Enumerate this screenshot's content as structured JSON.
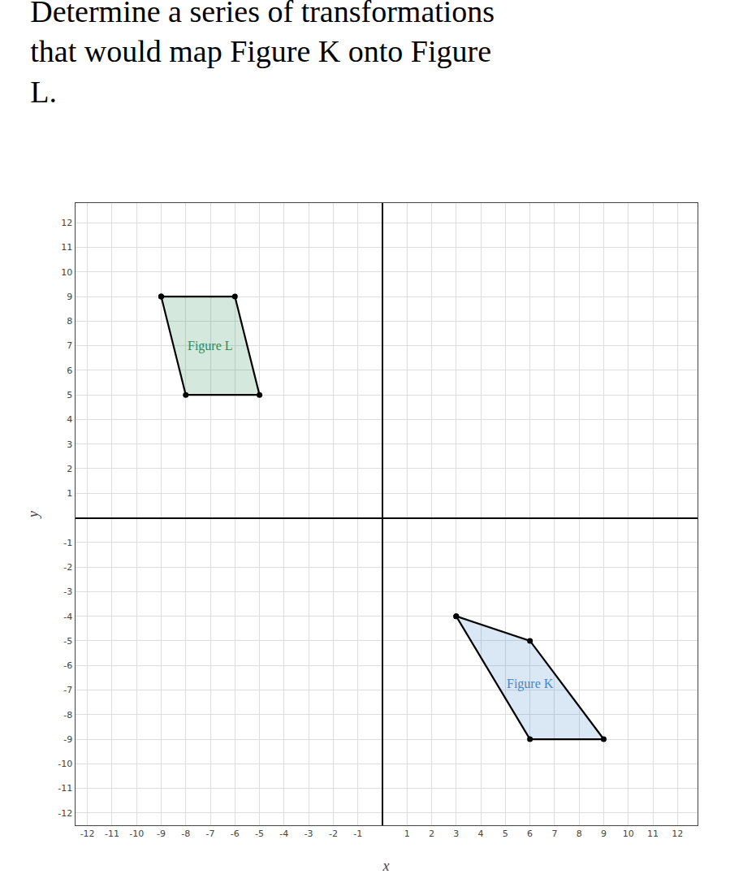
{
  "chart_data": {
    "type": "polygon",
    "title": "Determine a series of transformations\nthat would map Figure K onto Figure\nL.",
    "xlabel": "x",
    "ylabel": "y",
    "series": [
      {
        "name": "Figure L",
        "color": "#2e8b57",
        "x": [
          -9,
          -6,
          -5,
          -8
        ],
        "y": [
          9,
          9,
          5,
          5
        ]
      },
      {
        "name": "Figure K",
        "color": "#4488cc",
        "x": [
          3,
          6,
          9,
          6
        ],
        "y": [
          -4,
          -5,
          -9,
          -9
        ]
      }
    ],
    "xlim": [
      -12.5,
      12.8
    ],
    "ylim": [
      -12.5,
      12.8
    ],
    "xticks": [
      -12,
      -11,
      -10,
      -9,
      -8,
      -7,
      -6,
      -5,
      -4,
      -3,
      -2,
      -1,
      1,
      2,
      3,
      4,
      5,
      6,
      7,
      8,
      9,
      10,
      11,
      12
    ],
    "yticks": [
      -12,
      -11,
      -10,
      -9,
      -8,
      -7,
      -6,
      -5,
      -4,
      -3,
      -2,
      -1,
      1,
      2,
      3,
      4,
      5,
      6,
      7,
      8,
      9,
      10,
      11,
      12
    ],
    "grid": true
  }
}
